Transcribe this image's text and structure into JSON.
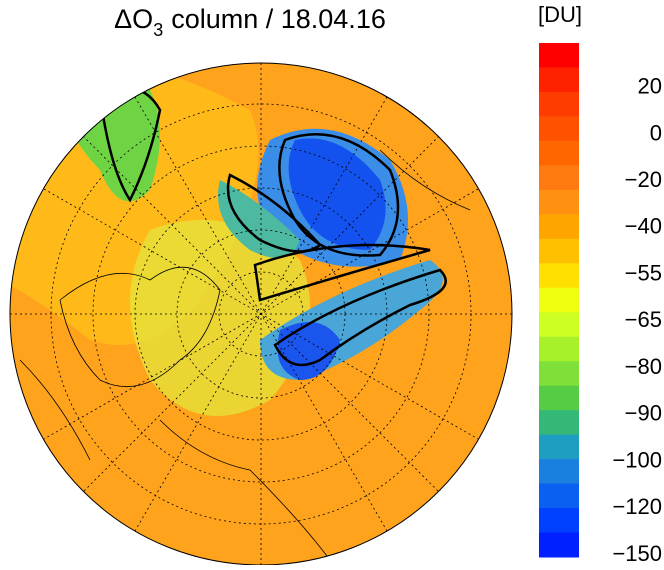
{
  "title": {
    "symbol": "ΔO",
    "subscript": "3",
    "text": "column / 18.04.16"
  },
  "colorbar": {
    "unit": "[DU]",
    "labels": [
      "20",
      "0",
      "−20",
      "−40",
      "−55",
      "−65",
      "−80",
      "−90",
      "−100",
      "−120",
      "−150"
    ],
    "colors": [
      "#ff0000",
      "#ff2200",
      "#ff3c00",
      "#ff5200",
      "#ff6600",
      "#ff7a10",
      "#ff9010",
      "#ffa500",
      "#ffc000",
      "#ffe000",
      "#f0ff10",
      "#ccff22",
      "#a8f02a",
      "#80e03a",
      "#55cc44",
      "#33b878",
      "#1e9ec0",
      "#1a80e0",
      "#0a60f0",
      "#0040ff",
      "#0020ff"
    ]
  }
}
